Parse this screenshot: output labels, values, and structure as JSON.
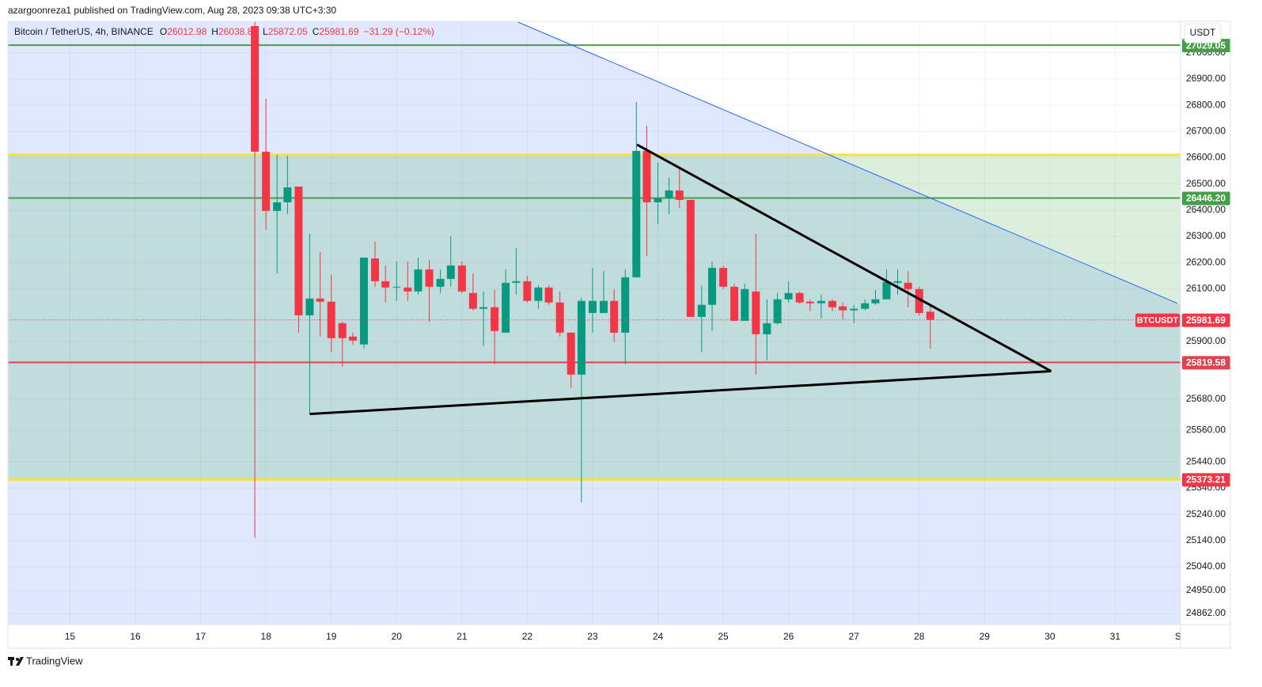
{
  "header": {
    "publisher": "azargoonreza1 published on TradingView.com, Aug 28, 2023 09:38 UTC+3:30",
    "brand": "TradingView"
  },
  "chart_data": {
    "type": "candlestick",
    "title": "Bitcoin / TetherUS, 4h, BINANCE",
    "ohlc": [
      {
        "key": "O",
        "value": "26012.98"
      },
      {
        "key": "H",
        "value": "26038.83"
      },
      {
        "key": "L",
        "value": "25872.05"
      },
      {
        "key": "C",
        "value": "25981.69"
      }
    ],
    "change": "−31.29 (−0.12%)",
    "currency": "USDT",
    "x": [
      17.83,
      18,
      18.17,
      18.33,
      18.5,
      18.67,
      18.83,
      19,
      19.17,
      19.33,
      19.5,
      19.67,
      19.83,
      20,
      20.17,
      20.33,
      20.5,
      20.67,
      20.83,
      21,
      21.17,
      21.33,
      21.5,
      21.67,
      21.83,
      22,
      22.17,
      22.33,
      22.5,
      22.67,
      22.83,
      23,
      23.17,
      23.33,
      23.5,
      23.67,
      23.83,
      24,
      24.17,
      24.33,
      24.5,
      24.67,
      24.83,
      25,
      25.17,
      25.33,
      25.5,
      25.67,
      25.83,
      26,
      26.17,
      26.33,
      26.5,
      26.67,
      26.83,
      27,
      27.17,
      27.33,
      27.5,
      27.67,
      27.83,
      28,
      28.17
    ],
    "open": [
      27102,
      26623,
      26397,
      26430,
      26490,
      25999,
      26063,
      26051,
      25969,
      25918,
      25888,
      26216,
      26129,
      26105,
      26105,
      26090,
      26174,
      26108,
      26138,
      26189,
      26084,
      26024,
      26030,
      25933,
      26123,
      26129,
      26054,
      26105,
      26048,
      25933,
      25773,
      26008,
      26008,
      26054,
      25933,
      26144,
      26626,
      26430,
      26445,
      26475,
      26439,
      25993,
      26039,
      26180,
      26108,
      25978,
      26090,
      25927,
      25969,
      26060,
      26084,
      26051,
      26045,
      26054,
      26033,
      26018,
      26024,
      26045,
      26060,
      26123,
      26123,
      26099,
      26012.98
    ],
    "high": [
      27180,
      26825,
      26611,
      26608,
      26490,
      26310,
      26240,
      26153,
      25975,
      25933,
      26219,
      26280,
      26189,
      26204,
      26204,
      26219,
      26210,
      26174,
      26301,
      26204,
      26159,
      26090,
      26096,
      26174,
      26255,
      26150,
      26114,
      26114,
      26090,
      25933,
      26066,
      26180,
      26168,
      26099,
      26174,
      26813,
      26722,
      26581,
      26523,
      26566,
      26439,
      26114,
      26204,
      26189,
      26120,
      26120,
      26310,
      26060,
      26084,
      26129,
      26090,
      26060,
      26078,
      26060,
      26048,
      26039,
      26060,
      26096,
      26174,
      26174,
      26168,
      26108,
      26038.83
    ],
    "low": [
      25150,
      26325,
      26159,
      26385,
      25933,
      25623,
      25918,
      25858,
      25804,
      25888,
      25873,
      26108,
      26048,
      26054,
      26054,
      26078,
      25975,
      26084,
      26108,
      26084,
      26018,
      25882,
      25813,
      25933,
      26078,
      26048,
      26024,
      26039,
      25918,
      25722,
      25286,
      25933,
      26008,
      25897,
      25813,
      26144,
      26225,
      26346,
      26385,
      26409,
      25993,
      25858,
      25939,
      26099,
      25978,
      25978,
      25773,
      25828,
      25963,
      26048,
      26042,
      26015,
      25987,
      26015,
      25984,
      25969,
      26018,
      26039,
      26060,
      26078,
      26030,
      25999,
      25872.05
    ],
    "close": [
      26623,
      26397,
      26430,
      26487,
      25999,
      26063,
      26051,
      25912,
      25912,
      25903,
      26219,
      26129,
      26105,
      26108,
      26090,
      26174,
      26108,
      26138,
      26189,
      26090,
      26024,
      26030,
      25939,
      26123,
      26129,
      26054,
      26105,
      26048,
      25933,
      25773,
      26054,
      26054,
      26054,
      25933,
      26144,
      26626,
      26430,
      26445,
      26475,
      26439,
      25993,
      26039,
      26180,
      26108,
      25978,
      26099,
      25927,
      25969,
      26060,
      26084,
      26048,
      26045,
      26054,
      26030,
      26018,
      26024,
      26045,
      26060,
      26126,
      26129,
      26099,
      26008,
      25981.69
    ],
    "up_color": "#089981",
    "down_color": "#f23645",
    "xlim": [
      14.05,
      32
    ],
    "xticks": [
      15,
      16,
      17,
      18,
      19,
      20,
      21,
      22,
      23,
      24,
      25,
      26,
      27,
      28,
      29,
      30,
      31,
      {
        "value": 32,
        "label": "S"
      }
    ],
    "ylim": [
      24820,
      27120
    ],
    "yticks": [
      {
        "value": 27000,
        "label": "27000.00"
      },
      {
        "value": 26900,
        "label": "26900.00"
      },
      {
        "value": 26800,
        "label": "26800.00"
      },
      {
        "value": 26700,
        "label": "26700.00"
      },
      {
        "value": 26600,
        "label": "26600.00"
      },
      {
        "value": 26500,
        "label": "26500.00"
      },
      {
        "value": 26400,
        "label": "26400.00"
      },
      {
        "value": 26300,
        "label": "26300.00"
      },
      {
        "value": 26200,
        "label": "26200.00"
      },
      {
        "value": 26100,
        "label": "26100.00"
      },
      {
        "value": 25900,
        "label": "25900.00"
      },
      {
        "value": 25680,
        "label": "25680.00"
      },
      {
        "value": 25560,
        "label": "25560.00"
      },
      {
        "value": 25440,
        "label": "25440.00"
      },
      {
        "value": 25340,
        "label": "25340.00"
      },
      {
        "value": 25240,
        "label": "25240.00"
      },
      {
        "value": 25140,
        "label": "25140.00"
      },
      {
        "value": 25040,
        "label": "25040.00"
      },
      {
        "value": 24950,
        "label": "24950.00"
      },
      {
        "value": 24862,
        "label": "24862.00"
      }
    ],
    "grid": true,
    "zone": {
      "top": 26611,
      "bottom": 25373.21,
      "color": "rgba(76,175,80,0.2)",
      "border": "#f5e33b"
    },
    "levels": [
      {
        "value": 27029.05,
        "color": "#43a047",
        "label_color": "#43a047"
      },
      {
        "value": 26446.2,
        "label": "26446.20",
        "color": "#43a047",
        "label_color": "#43a047"
      },
      {
        "value": 25819.58,
        "color": "#e0434f",
        "label_color": "#e0434f"
      },
      {
        "value": 25373.21,
        "color": "#f5e33b",
        "label_color": "#f23645"
      }
    ],
    "last_price": {
      "name": "BTCUSDT",
      "value": 25981.69,
      "color": "#f23645"
    },
    "trendlines": [
      {
        "points": [
          [
            21.86,
            27117
          ],
          [
            31.95,
            26045
          ]
        ],
        "color": "#2962ff",
        "width": 1,
        "fill_below": "rgba(41,98,255,0.15)"
      },
      {
        "points": [
          [
            18.67,
            25623
          ],
          [
            30.02,
            25786
          ]
        ],
        "color": "#000000",
        "width": 3
      },
      {
        "points": [
          [
            23.68,
            26650
          ],
          [
            30.02,
            25786
          ]
        ],
        "color": "#000000",
        "width": 3
      }
    ]
  }
}
